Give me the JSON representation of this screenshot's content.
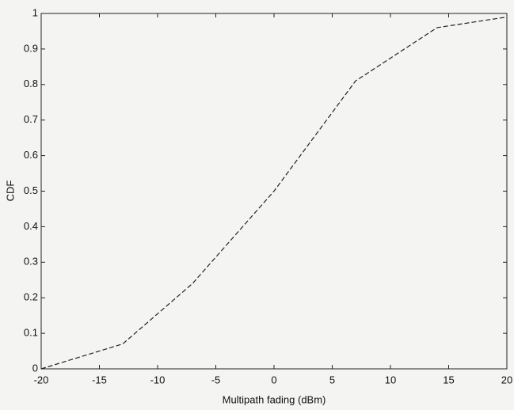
{
  "chart_data": {
    "type": "line",
    "x_label": "Multipath fading (dBm)",
    "y_label": "CDF",
    "x": [
      -20,
      -13,
      -7,
      0,
      7,
      14,
      20
    ],
    "series": [
      {
        "name": "CDF",
        "color": "#222222",
        "values": [
          0,
          0.07,
          0.24,
          0.5,
          0.81,
          0.96,
          0.99
        ]
      }
    ],
    "xlim": [
      -20,
      20
    ],
    "ylim": [
      0,
      1
    ],
    "xticks": [
      -20,
      -15,
      -10,
      -5,
      0,
      5,
      10,
      15,
      20
    ],
    "yticks": [
      0,
      0.1,
      0.2,
      0.3,
      0.4,
      0.5,
      0.6,
      0.7,
      0.8,
      0.9,
      1
    ],
    "line_style": "dashed"
  }
}
